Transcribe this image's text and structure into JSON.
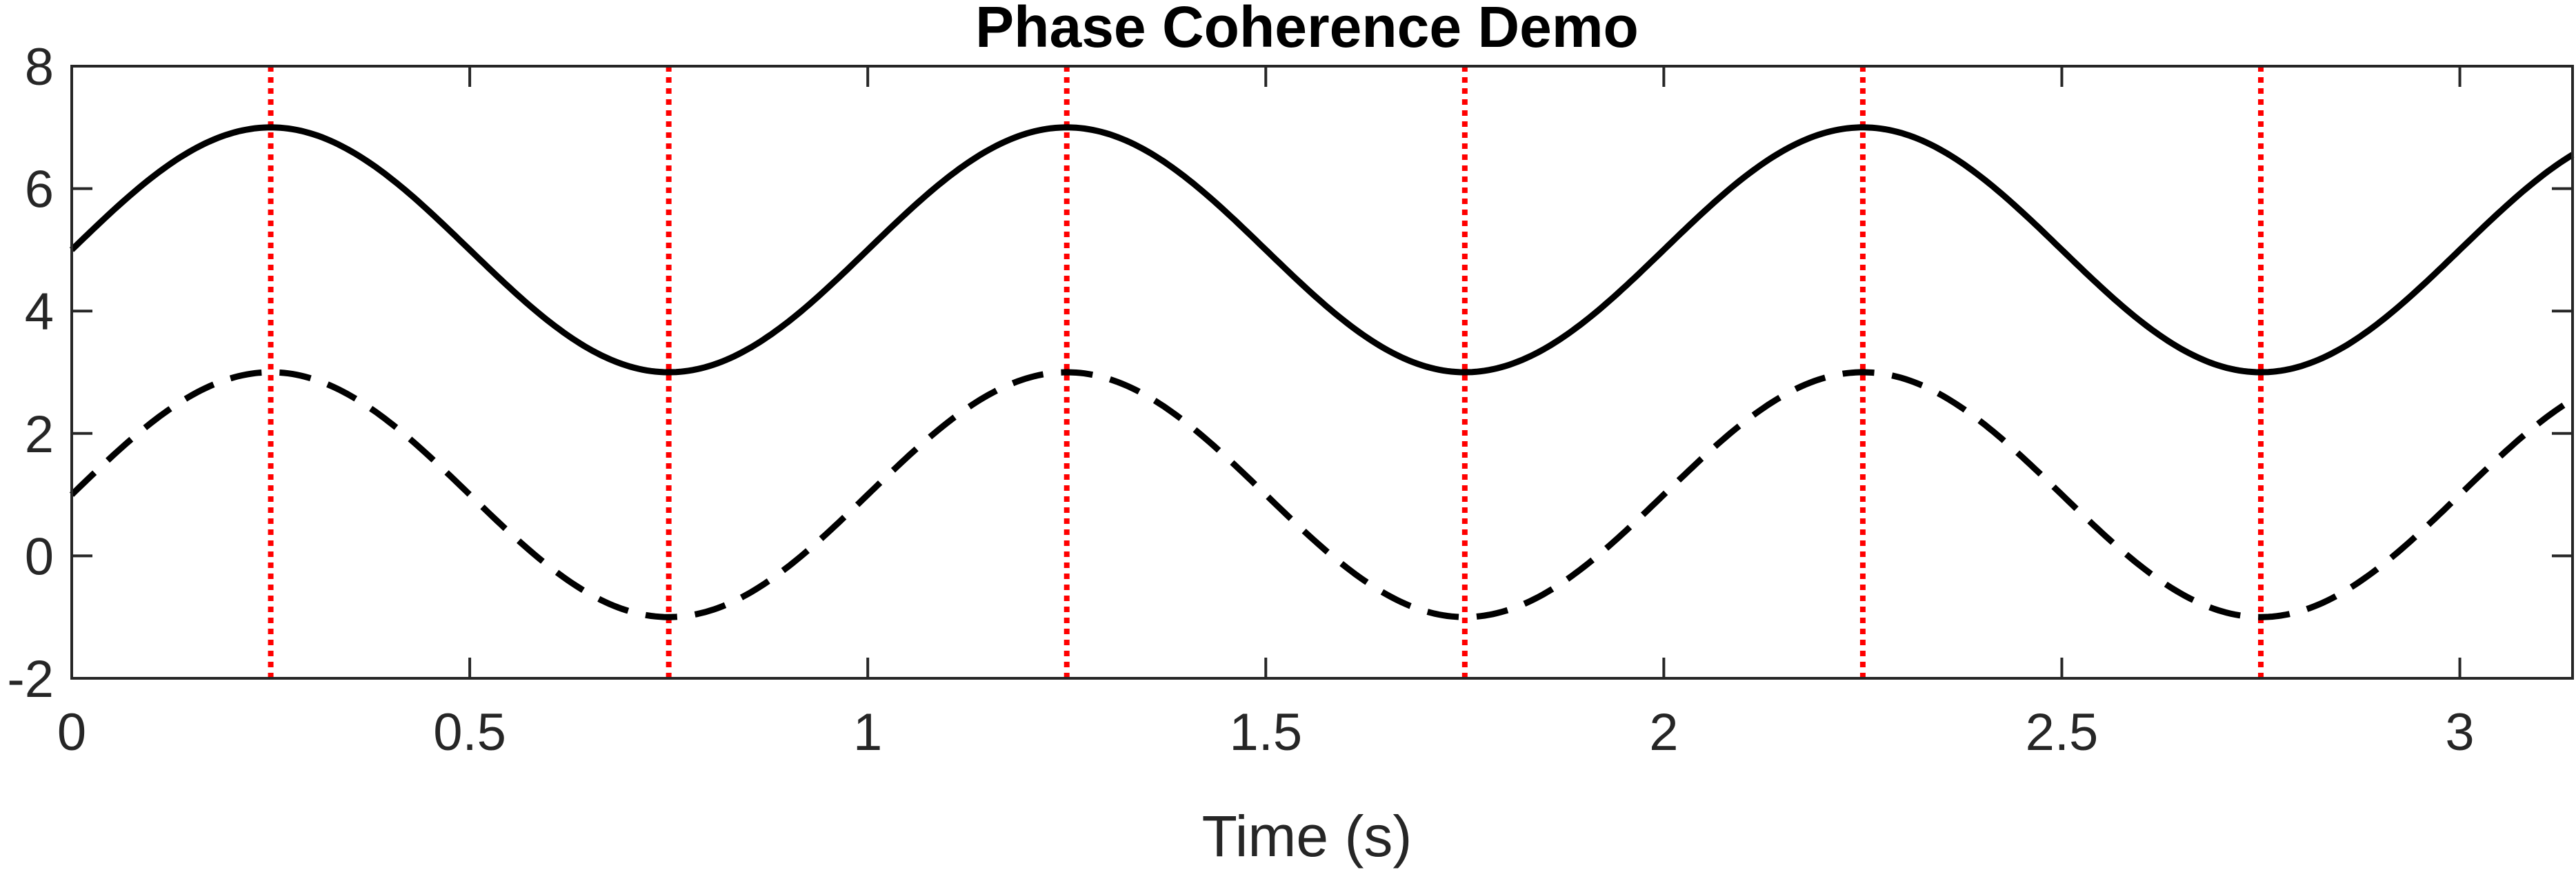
{
  "chart_data": {
    "type": "line",
    "title": "Phase Coherence Demo",
    "xlabel": "Time (s)",
    "ylabel": "",
    "xlim": [
      0,
      3.1416
    ],
    "ylim": [
      -2,
      8
    ],
    "xticks": [
      0,
      0.5,
      1,
      1.5,
      2,
      2.5,
      3
    ],
    "xtick_labels": [
      "0",
      "0.5",
      "1",
      "1.5",
      "2",
      "2.5",
      "3"
    ],
    "yticks": [
      -2,
      0,
      2,
      4,
      6,
      8
    ],
    "ytick_labels": [
      "-2",
      "0",
      "2",
      "4",
      "6",
      "8"
    ],
    "grid": false,
    "legend": "none",
    "series": [
      {
        "style": "solid",
        "color": "#000000",
        "x": [
          0,
          0.125,
          0.25,
          0.375,
          0.5,
          0.625,
          0.75,
          0.875,
          1,
          1.125,
          1.25,
          1.375,
          1.5,
          1.625,
          1.75,
          1.875,
          2,
          2.125,
          2.25,
          2.375,
          2.5,
          2.625,
          2.75,
          2.875,
          3,
          3.1416
        ],
        "y": [
          5,
          6.41,
          7,
          6.41,
          5,
          3.59,
          3,
          3.59,
          5,
          6.41,
          7,
          6.41,
          5,
          3.59,
          3,
          3.59,
          5,
          6.41,
          7,
          6.41,
          5,
          3.59,
          3,
          3.59,
          5,
          6.55
        ]
      },
      {
        "style": "dashed",
        "color": "#000000",
        "x": [
          0,
          0.125,
          0.25,
          0.375,
          0.5,
          0.625,
          0.75,
          0.875,
          1,
          1.125,
          1.25,
          1.375,
          1.5,
          1.625,
          1.75,
          1.875,
          2,
          2.125,
          2.25,
          2.375,
          2.5,
          2.625,
          2.75,
          2.875,
          3,
          3.1416
        ],
        "y": [
          1,
          2.41,
          3,
          2.41,
          1,
          -0.41,
          -1,
          -0.41,
          1,
          2.41,
          3,
          2.41,
          1,
          -0.41,
          -1,
          -0.41,
          1,
          2.41,
          3,
          2.41,
          1,
          -0.41,
          -1,
          -0.41,
          1,
          2.55
        ]
      }
    ],
    "vlines": {
      "style": "dotted",
      "color": "#ff0000",
      "x": [
        0.25,
        0.75,
        1.25,
        1.75,
        2.25,
        2.75
      ]
    }
  }
}
